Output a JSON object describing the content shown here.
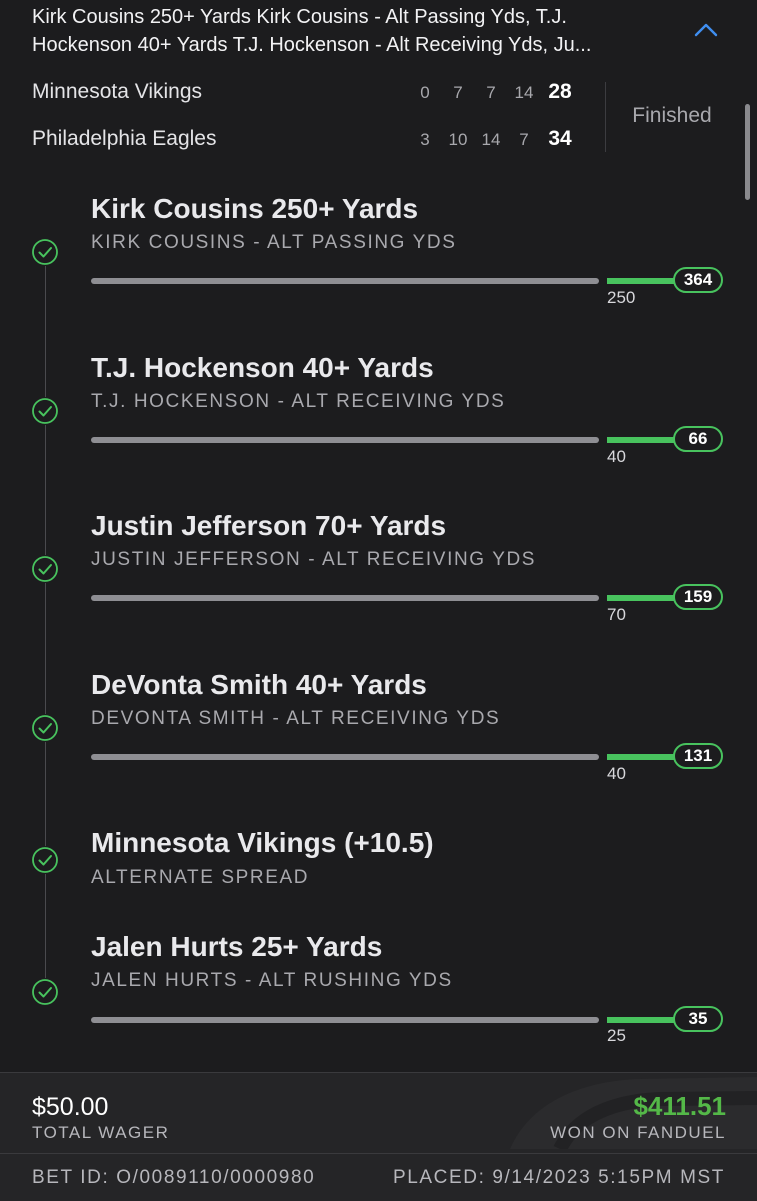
{
  "header": {
    "title": "Kirk Cousins 250+ Yards Kirk Cousins - Alt Passing Yds, T.J. Hockenson 40+ Yards T.J. Hockenson - Alt Receiving Yds, Ju...",
    "collapse_icon": "chevron-up-icon"
  },
  "game": {
    "status": "Finished",
    "teams": [
      {
        "name": "Minnesota Vikings",
        "quarters": [
          "0",
          "7",
          "7",
          "14"
        ],
        "total": "28"
      },
      {
        "name": "Philadelphia Eagles",
        "quarters": [
          "3",
          "10",
          "14",
          "7"
        ],
        "total": "34"
      }
    ]
  },
  "legs": [
    {
      "title": "Kirk Cousins 250+ Yards",
      "subtitle": "KIRK COUSINS - ALT PASSING YDS",
      "threshold": "250",
      "actual": "364",
      "icon": "check-circle-icon"
    },
    {
      "title": "T.J. Hockenson 40+ Yards",
      "subtitle": "T.J. HOCKENSON - ALT RECEIVING YDS",
      "threshold": "40",
      "actual": "66",
      "icon": "check-circle-icon"
    },
    {
      "title": "Justin Jefferson 70+ Yards",
      "subtitle": "JUSTIN JEFFERSON - ALT RECEIVING YDS",
      "threshold": "70",
      "actual": "159",
      "icon": "check-circle-icon"
    },
    {
      "title": "DeVonta Smith 40+ Yards",
      "subtitle": "DEVONTA SMITH - ALT RECEIVING YDS",
      "threshold": "40",
      "actual": "131",
      "icon": "check-circle-icon"
    },
    {
      "title": "Minnesota Vikings (+10.5)",
      "subtitle": "ALTERNATE SPREAD",
      "icon": "check-circle-icon"
    },
    {
      "title": "Jalen Hurts 25+ Yards",
      "subtitle": "JALEN HURTS - ALT RUSHING YDS",
      "threshold": "25",
      "actual": "35",
      "icon": "check-circle-icon"
    }
  ],
  "footer": {
    "wager_amount": "$50.00",
    "wager_label": "TOTAL WAGER",
    "won_amount": "$411.51",
    "won_label": "WON ON FANDUEL",
    "bet_id": "BET ID: O/0089110/0000980",
    "placed": "PLACED: 9/14/2023 5:15PM MST"
  },
  "colors": {
    "background": "#1c1c1e",
    "accent_green": "#48c35e",
    "won_green": "#54b848",
    "chevron_blue": "#3f8ef0"
  }
}
